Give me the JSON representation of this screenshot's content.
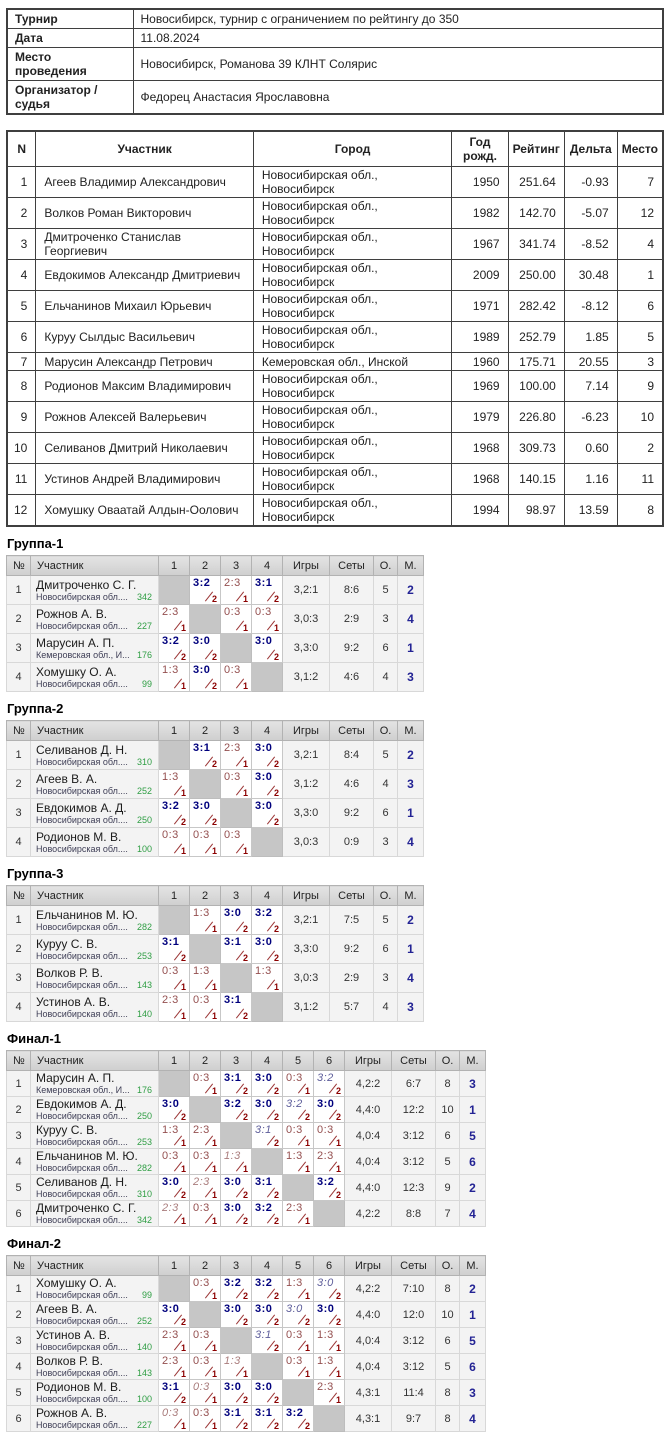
{
  "info_rows": [
    {
      "label": "Турнир",
      "value": "Новосибирск, турнир с ограничением по рейтингу до 350"
    },
    {
      "label": "Дата",
      "value": "11.08.2024"
    },
    {
      "label": "Место проведения",
      "value": "Новосибирск, Романова 39 КЛНТ Солярис"
    },
    {
      "label": "Организатор / судья",
      "value": "Федорец Анастасия Ярославовна"
    }
  ],
  "participants": {
    "headers": [
      "N",
      "Участник",
      "Город",
      "Год рожд.",
      "Рейтинг",
      "Дельта",
      "Место"
    ],
    "rows": [
      [
        "1",
        "Агеев Владимир Александрович",
        "Новосибирская обл., Новосибирск",
        "1950",
        "251.64",
        "-0.93",
        "7"
      ],
      [
        "2",
        "Волков Роман Викторович",
        "Новосибирская обл., Новосибирск",
        "1982",
        "142.70",
        "-5.07",
        "12"
      ],
      [
        "3",
        "Дмитроченко Станислав Георгиевич",
        "Новосибирская обл., Новосибирск",
        "1967",
        "341.74",
        "-8.52",
        "4"
      ],
      [
        "4",
        "Евдокимов Александр Дмитриевич",
        "Новосибирская обл., Новосибирск",
        "2009",
        "250.00",
        "30.48",
        "1"
      ],
      [
        "5",
        "Ельчанинов Михаил Юрьевич",
        "Новосибирская обл., Новосибирск",
        "1971",
        "282.42",
        "-8.12",
        "6"
      ],
      [
        "6",
        "Куруу Сылдыс Васильевич",
        "Новосибирская обл., Новосибирск",
        "1989",
        "252.79",
        "1.85",
        "5"
      ],
      [
        "7",
        "Марусин Александр Петрович",
        "Кемеровская обл., Инской",
        "1960",
        "175.71",
        "20.55",
        "3"
      ],
      [
        "8",
        "Родионов Максим Владимирович",
        "Новосибирская обл., Новосибирск",
        "1969",
        "100.00",
        "7.14",
        "9"
      ],
      [
        "9",
        "Рожнов Алексей Валерьевич",
        "Новосибирская обл., Новосибирск",
        "1979",
        "226.80",
        "-6.23",
        "10"
      ],
      [
        "10",
        "Селиванов Дмитрий Николаевич",
        "Новосибирская обл., Новосибирск",
        "1968",
        "309.73",
        "0.60",
        "2"
      ],
      [
        "11",
        "Устинов Андрей Владимирович",
        "Новосибирская обл., Новосибирск",
        "1968",
        "140.15",
        "1.16",
        "11"
      ],
      [
        "12",
        "Хомушку Оваатай Алдын-Оолович",
        "Новосибирская обл., Новосибирск",
        "1994",
        "98.97",
        "13.59",
        "8"
      ]
    ]
  },
  "xheaders": {
    "num": "№",
    "name": "Участник",
    "games": "Игры",
    "sets": "Сеты",
    "pts": "О.",
    "place": "М."
  },
  "tables": [
    {
      "title": "Группа-1",
      "cols": [
        "1",
        "2",
        "3",
        "4"
      ],
      "rows": [
        {
          "n": "1",
          "name": "Дмитроченко С. Г.",
          "club": "Новосибирская обл....",
          "rating": "342",
          "cells": [
            null,
            {
              "s": "3:2",
              "p": "2",
              "w": 1
            },
            {
              "s": "2:3",
              "p": "1"
            },
            {
              "s": "3:1",
              "p": "2",
              "w": 1
            }
          ],
          "games": "3,2:1",
          "sets": "8:6",
          "pts": "5",
          "place": "2"
        },
        {
          "n": "2",
          "name": "Рожнов А. В.",
          "club": "Новосибирская обл....",
          "rating": "227",
          "cells": [
            {
              "s": "2:3",
              "p": "1"
            },
            null,
            {
              "s": "0:3",
              "p": "1"
            },
            {
              "s": "0:3",
              "p": "1"
            }
          ],
          "games": "3,0:3",
          "sets": "2:9",
          "pts": "3",
          "place": "4"
        },
        {
          "n": "3",
          "name": "Марусин А. П.",
          "club": "Кемеровская обл., И...",
          "rating": "176",
          "cells": [
            {
              "s": "3:2",
              "p": "2",
              "w": 1
            },
            {
              "s": "3:0",
              "p": "2",
              "w": 1
            },
            null,
            {
              "s": "3:0",
              "p": "2",
              "w": 1
            }
          ],
          "games": "3,3:0",
          "sets": "9:2",
          "pts": "6",
          "place": "1"
        },
        {
          "n": "4",
          "name": "Хомушку О. А.",
          "club": "Новосибирская обл....",
          "rating": "99",
          "cells": [
            {
              "s": "1:3",
              "p": "1"
            },
            {
              "s": "3:0",
              "p": "2",
              "w": 1
            },
            {
              "s": "0:3",
              "p": "1"
            },
            null
          ],
          "games": "3,1:2",
          "sets": "4:6",
          "pts": "4",
          "place": "3"
        }
      ]
    },
    {
      "title": "Группа-2",
      "cols": [
        "1",
        "2",
        "3",
        "4"
      ],
      "rows": [
        {
          "n": "1",
          "name": "Селиванов Д. Н.",
          "club": "Новосибирская обл....",
          "rating": "310",
          "cells": [
            null,
            {
              "s": "3:1",
              "p": "2",
              "w": 1
            },
            {
              "s": "2:3",
              "p": "1"
            },
            {
              "s": "3:0",
              "p": "2",
              "w": 1
            }
          ],
          "games": "3,2:1",
          "sets": "8:4",
          "pts": "5",
          "place": "2"
        },
        {
          "n": "2",
          "name": "Агеев В. А.",
          "club": "Новосибирская обл....",
          "rating": "252",
          "cells": [
            {
              "s": "1:3",
              "p": "1"
            },
            null,
            {
              "s": "0:3",
              "p": "1"
            },
            {
              "s": "3:0",
              "p": "2",
              "w": 1
            }
          ],
          "games": "3,1:2",
          "sets": "4:6",
          "pts": "4",
          "place": "3"
        },
        {
          "n": "3",
          "name": "Евдокимов А. Д.",
          "club": "Новосибирская обл....",
          "rating": "250",
          "cells": [
            {
              "s": "3:2",
              "p": "2",
              "w": 1
            },
            {
              "s": "3:0",
              "p": "2",
              "w": 1
            },
            null,
            {
              "s": "3:0",
              "p": "2",
              "w": 1
            }
          ],
          "games": "3,3:0",
          "sets": "9:2",
          "pts": "6",
          "place": "1"
        },
        {
          "n": "4",
          "name": "Родионов М. В.",
          "club": "Новосибирская обл....",
          "rating": "100",
          "cells": [
            {
              "s": "0:3",
              "p": "1"
            },
            {
              "s": "0:3",
              "p": "1"
            },
            {
              "s": "0:3",
              "p": "1"
            },
            null
          ],
          "games": "3,0:3",
          "sets": "0:9",
          "pts": "3",
          "place": "4"
        }
      ]
    },
    {
      "title": "Группа-3",
      "cols": [
        "1",
        "2",
        "3",
        "4"
      ],
      "rows": [
        {
          "n": "1",
          "name": "Ельчанинов М. Ю.",
          "club": "Новосибирская обл....",
          "rating": "282",
          "cells": [
            null,
            {
              "s": "1:3",
              "p": "1"
            },
            {
              "s": "3:0",
              "p": "2",
              "w": 1
            },
            {
              "s": "3:2",
              "p": "2",
              "w": 1
            }
          ],
          "games": "3,2:1",
          "sets": "7:5",
          "pts": "5",
          "place": "2"
        },
        {
          "n": "2",
          "name": "Куруу С. В.",
          "club": "Новосибирская обл....",
          "rating": "253",
          "cells": [
            {
              "s": "3:1",
              "p": "2",
              "w": 1
            },
            null,
            {
              "s": "3:1",
              "p": "2",
              "w": 1
            },
            {
              "s": "3:0",
              "p": "2",
              "w": 1
            }
          ],
          "games": "3,3:0",
          "sets": "9:2",
          "pts": "6",
          "place": "1"
        },
        {
          "n": "3",
          "name": "Волков Р. В.",
          "club": "Новосибирская обл....",
          "rating": "143",
          "cells": [
            {
              "s": "0:3",
              "p": "1"
            },
            {
              "s": "1:3",
              "p": "1"
            },
            null,
            {
              "s": "1:3",
              "p": "1"
            }
          ],
          "games": "3,0:3",
          "sets": "2:9",
          "pts": "3",
          "place": "4"
        },
        {
          "n": "4",
          "name": "Устинов А. В.",
          "club": "Новосибирская обл....",
          "rating": "140",
          "cells": [
            {
              "s": "2:3",
              "p": "1"
            },
            {
              "s": "0:3",
              "p": "1"
            },
            {
              "s": "3:1",
              "p": "2",
              "w": 1
            },
            null
          ],
          "games": "3,1:2",
          "sets": "5:7",
          "pts": "4",
          "place": "3"
        }
      ]
    },
    {
      "title": "Финал-1",
      "cols": [
        "1",
        "2",
        "3",
        "4",
        "5",
        "6"
      ],
      "rows": [
        {
          "n": "1",
          "name": "Марусин А. П.",
          "club": "Кемеровская обл., И...",
          "rating": "176",
          "cells": [
            null,
            {
              "s": "0:3",
              "p": "1"
            },
            {
              "s": "3:1",
              "p": "2",
              "w": 1
            },
            {
              "s": "3:0",
              "p": "2",
              "w": 1
            },
            {
              "s": "0:3",
              "p": "1"
            },
            {
              "s": "3:2",
              "p": "2",
              "w": 1,
              "i": 1
            }
          ],
          "games": "4,2:2",
          "sets": "6:7",
          "pts": "8",
          "place": "3"
        },
        {
          "n": "2",
          "name": "Евдокимов А. Д.",
          "club": "Новосибирская обл....",
          "rating": "250",
          "cells": [
            {
              "s": "3:0",
              "p": "2",
              "w": 1
            },
            null,
            {
              "s": "3:2",
              "p": "2",
              "w": 1
            },
            {
              "s": "3:0",
              "p": "2",
              "w": 1
            },
            {
              "s": "3:2",
              "p": "2",
              "w": 1,
              "i": 1
            },
            {
              "s": "3:0",
              "p": "2",
              "w": 1
            }
          ],
          "games": "4,4:0",
          "sets": "12:2",
          "pts": "10",
          "place": "1"
        },
        {
          "n": "3",
          "name": "Куруу С. В.",
          "club": "Новосибирская обл....",
          "rating": "253",
          "cells": [
            {
              "s": "1:3",
              "p": "1"
            },
            {
              "s": "2:3",
              "p": "1"
            },
            null,
            {
              "s": "3:1",
              "p": "2",
              "w": 1,
              "i": 1
            },
            {
              "s": "0:3",
              "p": "1"
            },
            {
              "s": "0:3",
              "p": "1"
            }
          ],
          "games": "4,0:4",
          "sets": "3:12",
          "pts": "6",
          "place": "5"
        },
        {
          "n": "4",
          "name": "Ельчанинов М. Ю.",
          "club": "Новосибирская обл....",
          "rating": "282",
          "cells": [
            {
              "s": "0:3",
              "p": "1"
            },
            {
              "s": "0:3",
              "p": "1"
            },
            {
              "s": "1:3",
              "p": "1",
              "i": 1
            },
            null,
            {
              "s": "1:3",
              "p": "1"
            },
            {
              "s": "2:3",
              "p": "1"
            }
          ],
          "games": "4,0:4",
          "sets": "3:12",
          "pts": "5",
          "place": "6"
        },
        {
          "n": "5",
          "name": "Селиванов Д. Н.",
          "club": "Новосибирская обл....",
          "rating": "310",
          "cells": [
            {
              "s": "3:0",
              "p": "2",
              "w": 1
            },
            {
              "s": "2:3",
              "p": "1",
              "i": 1
            },
            {
              "s": "3:0",
              "p": "2",
              "w": 1
            },
            {
              "s": "3:1",
              "p": "2",
              "w": 1
            },
            null,
            {
              "s": "3:2",
              "p": "2",
              "w": 1
            }
          ],
          "games": "4,4:0",
          "sets": "12:3",
          "pts": "9",
          "place": "2"
        },
        {
          "n": "6",
          "name": "Дмитроченко С. Г.",
          "club": "Новосибирская обл....",
          "rating": "342",
          "cells": [
            {
              "s": "2:3",
              "p": "1",
              "i": 1
            },
            {
              "s": "0:3",
              "p": "1"
            },
            {
              "s": "3:0",
              "p": "2",
              "w": 1
            },
            {
              "s": "3:2",
              "p": "2",
              "w": 1
            },
            {
              "s": "2:3",
              "p": "1"
            },
            null
          ],
          "games": "4,2:2",
          "sets": "8:8",
          "pts": "7",
          "place": "4"
        }
      ]
    },
    {
      "title": "Финал-2",
      "cols": [
        "1",
        "2",
        "3",
        "4",
        "5",
        "6"
      ],
      "rows": [
        {
          "n": "1",
          "name": "Хомушку О. А.",
          "club": "Новосибирская обл....",
          "rating": "99",
          "cells": [
            null,
            {
              "s": "0:3",
              "p": "1"
            },
            {
              "s": "3:2",
              "p": "2",
              "w": 1
            },
            {
              "s": "3:2",
              "p": "2",
              "w": 1
            },
            {
              "s": "1:3",
              "p": "1"
            },
            {
              "s": "3:0",
              "p": "2",
              "w": 1,
              "i": 1
            }
          ],
          "games": "4,2:2",
          "sets": "7:10",
          "pts": "8",
          "place": "2"
        },
        {
          "n": "2",
          "name": "Агеев В. А.",
          "club": "Новосибирская обл....",
          "rating": "252",
          "cells": [
            {
              "s": "3:0",
              "p": "2",
              "w": 1
            },
            null,
            {
              "s": "3:0",
              "p": "2",
              "w": 1
            },
            {
              "s": "3:0",
              "p": "2",
              "w": 1
            },
            {
              "s": "3:0",
              "p": "2",
              "w": 1,
              "i": 1
            },
            {
              "s": "3:0",
              "p": "2",
              "w": 1
            }
          ],
          "games": "4,4:0",
          "sets": "12:0",
          "pts": "10",
          "place": "1"
        },
        {
          "n": "3",
          "name": "Устинов А. В.",
          "club": "Новосибирская обл....",
          "rating": "140",
          "cells": [
            {
              "s": "2:3",
              "p": "1"
            },
            {
              "s": "0:3",
              "p": "1"
            },
            null,
            {
              "s": "3:1",
              "p": "2",
              "w": 1,
              "i": 1
            },
            {
              "s": "0:3",
              "p": "1"
            },
            {
              "s": "1:3",
              "p": "1"
            }
          ],
          "games": "4,0:4",
          "sets": "3:12",
          "pts": "6",
          "place": "5"
        },
        {
          "n": "4",
          "name": "Волков Р. В.",
          "club": "Новосибирская обл....",
          "rating": "143",
          "cells": [
            {
              "s": "2:3",
              "p": "1"
            },
            {
              "s": "0:3",
              "p": "1"
            },
            {
              "s": "1:3",
              "p": "1",
              "i": 1
            },
            null,
            {
              "s": "0:3",
              "p": "1"
            },
            {
              "s": "1:3",
              "p": "1"
            }
          ],
          "games": "4,0:4",
          "sets": "3:12",
          "pts": "5",
          "place": "6"
        },
        {
          "n": "5",
          "name": "Родионов М. В.",
          "club": "Новосибирская обл....",
          "rating": "100",
          "cells": [
            {
              "s": "3:1",
              "p": "2",
              "w": 1
            },
            {
              "s": "0:3",
              "p": "1",
              "i": 1
            },
            {
              "s": "3:0",
              "p": "2",
              "w": 1
            },
            {
              "s": "3:0",
              "p": "2",
              "w": 1
            },
            null,
            {
              "s": "2:3",
              "p": "1"
            }
          ],
          "games": "4,3:1",
          "sets": "11:4",
          "pts": "8",
          "place": "3"
        },
        {
          "n": "6",
          "name": "Рожнов А. В.",
          "club": "Новосибирская обл....",
          "rating": "227",
          "cells": [
            {
              "s": "0:3",
              "p": "1",
              "i": 1
            },
            {
              "s": "0:3",
              "p": "1"
            },
            {
              "s": "3:1",
              "p": "2",
              "w": 1
            },
            {
              "s": "3:1",
              "p": "2",
              "w": 1
            },
            {
              "s": "3:2",
              "p": "2",
              "w": 1
            },
            null
          ],
          "games": "4,3:1",
          "sets": "9:7",
          "pts": "8",
          "place": "4"
        }
      ]
    }
  ]
}
